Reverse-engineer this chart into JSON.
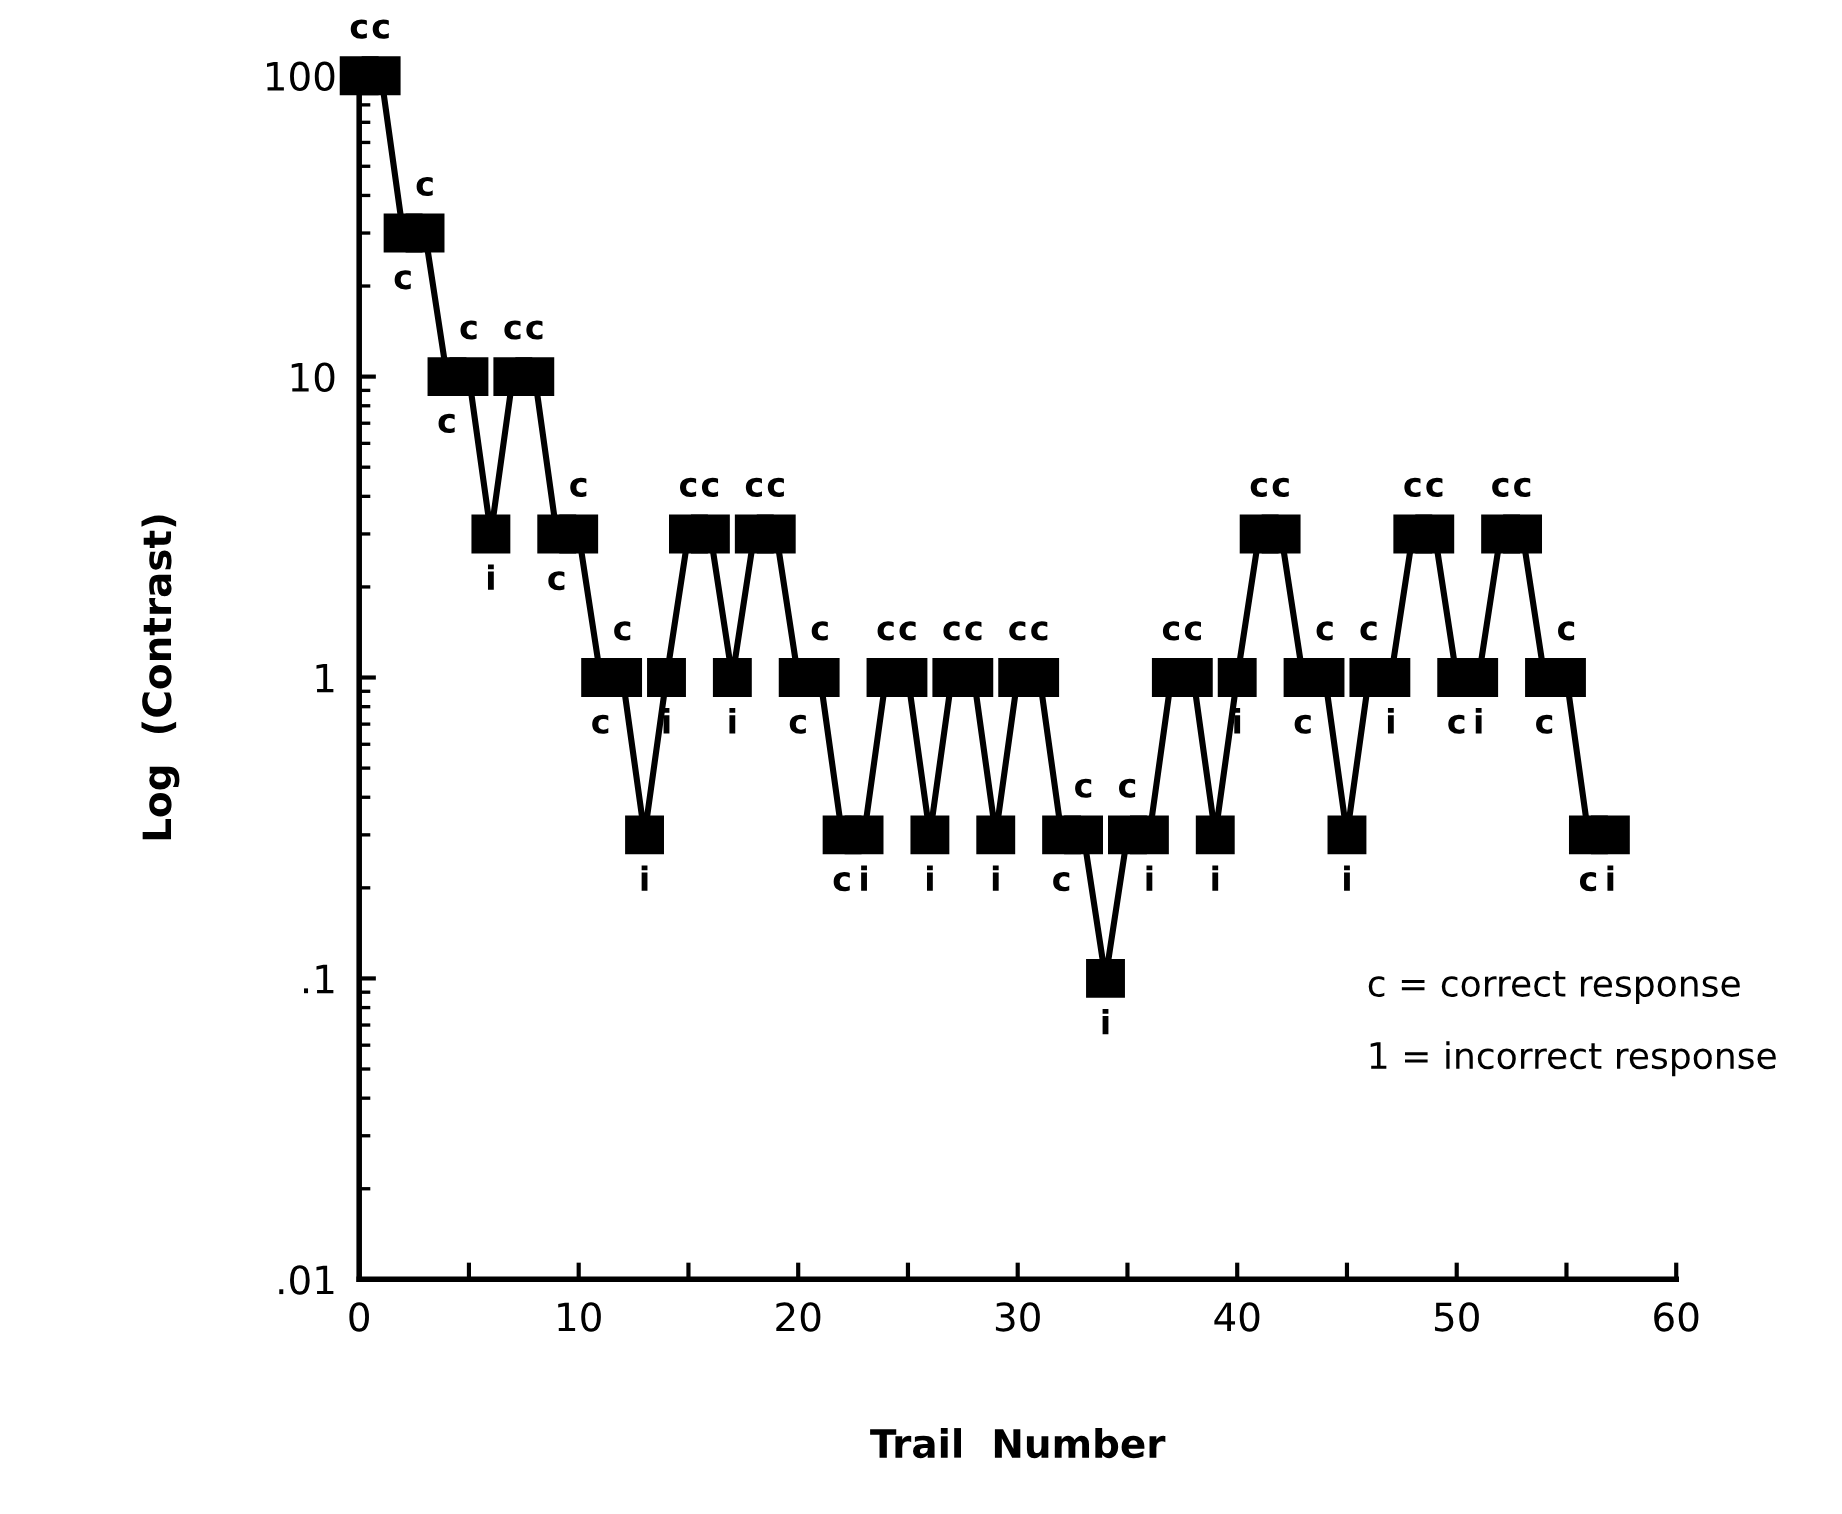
{
  "chart_data": {
    "type": "line",
    "xlabel": "Trail  Number",
    "ylabel": "Log  (Contrast)",
    "log": "y",
    "marker": "square",
    "line_style": "solid",
    "grid": false,
    "legend": false,
    "xlim": [
      0,
      60
    ],
    "xticks": [
      0,
      {
        "value": 5,
        "label": null
      },
      10,
      {
        "value": 15,
        "label": null
      },
      20,
      {
        "value": 25,
        "label": null
      },
      30,
      {
        "value": 35,
        "label": null
      },
      40,
      {
        "value": 45,
        "label": null
      },
      50,
      {
        "value": 55,
        "label": null
      },
      60
    ],
    "ylim": [
      0.01,
      100
    ],
    "yticks": [
      {
        "value": 0.01,
        "label": ".01"
      },
      {
        "value": 0.1,
        "label": ".1"
      },
      1,
      10,
      100
    ],
    "series": [
      {
        "color": "#000000",
        "x": [
          0,
          1,
          2,
          3,
          4,
          5,
          6,
          7,
          8,
          9,
          10,
          11,
          12,
          13,
          14,
          15,
          16,
          17,
          18,
          19,
          20,
          21,
          22,
          23,
          24,
          25,
          26,
          27,
          28,
          29,
          30,
          31,
          32,
          33,
          34,
          35,
          36,
          37,
          38,
          39,
          40,
          41,
          42,
          43,
          44,
          45,
          46,
          47,
          48,
          49,
          50,
          51,
          52,
          53,
          54,
          55,
          56,
          57
        ],
        "values": [
          100,
          100,
          30,
          30,
          10,
          10,
          3,
          10,
          10,
          3,
          3,
          1,
          1,
          0.3,
          1,
          3,
          3,
          1,
          3,
          3,
          1,
          1,
          0.3,
          0.3,
          1,
          1,
          0.3,
          1,
          1,
          0.3,
          1,
          1,
          0.3,
          0.3,
          0.1,
          0.3,
          0.3,
          1,
          1,
          0.3,
          1,
          3,
          3,
          1,
          1,
          0.3,
          1,
          1,
          3,
          3,
          1,
          1,
          3,
          3,
          1,
          1,
          0.3,
          0.3
        ],
        "value_labels": [
          "c",
          "c",
          "c",
          "c",
          "c",
          "c",
          "i",
          "c",
          "c",
          "c",
          "c",
          "c",
          "c",
          "i",
          "i",
          "c",
          "c",
          "i",
          "c",
          "c",
          "c",
          "c",
          "c",
          "i",
          "c",
          "c",
          "i",
          "c",
          "c",
          "i",
          "c",
          "c",
          "c",
          "c",
          "i",
          "c",
          "i",
          "c",
          "c",
          "i",
          "i",
          "c",
          "c",
          "c",
          "c",
          "i",
          "c",
          "i",
          "c",
          "c",
          "c",
          "i",
          "c",
          "c",
          "c",
          "c",
          "c",
          "i"
        ]
      }
    ],
    "annotations": [
      "c = correct response",
      "1 = incorrect response"
    ]
  }
}
